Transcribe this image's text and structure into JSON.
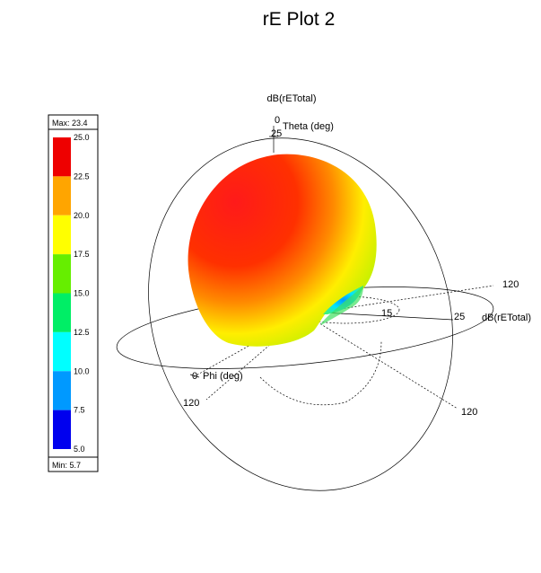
{
  "chart_data": {
    "type": "3d-polar-pattern",
    "title": "rE Plot 2",
    "quantity_label": "dB(rETotal)",
    "axes": {
      "theta": {
        "label": "Theta (deg)",
        "zero_label": "0"
      },
      "phi": {
        "label": "Phi (deg)",
        "zero_label": "0"
      },
      "ticks": {
        "radial_inner": "15",
        "radial_outer": "25",
        "arc_x": "120",
        "arc_phi": "120",
        "arc_theta": "120",
        "top": "25"
      }
    },
    "legend": {
      "max_label": "Max: 23.4",
      "min_label": "Min: 5.7",
      "max": 23.4,
      "min": 5.7,
      "ticks": [
        "25.0",
        "22.5",
        "20.0",
        "17.5",
        "15.0",
        "12.5",
        "10.0",
        "7.5",
        "5.0"
      ],
      "bands": [
        {
          "from": 22.5,
          "to": 25.0,
          "color": "#ee0000"
        },
        {
          "from": 20.0,
          "to": 22.5,
          "color": "#ffa500"
        },
        {
          "from": 17.5,
          "to": 20.0,
          "color": "#ffff00"
        },
        {
          "from": 15.0,
          "to": 17.5,
          "color": "#66ee00"
        },
        {
          "from": 12.5,
          "to": 15.0,
          "color": "#00ee66"
        },
        {
          "from": 10.0,
          "to": 12.5,
          "color": "#00ffff"
        },
        {
          "from": 7.5,
          "to": 10.0,
          "color": "#0099ff"
        },
        {
          "from": 5.0,
          "to": 7.5,
          "color": "#0000ee"
        }
      ]
    }
  }
}
